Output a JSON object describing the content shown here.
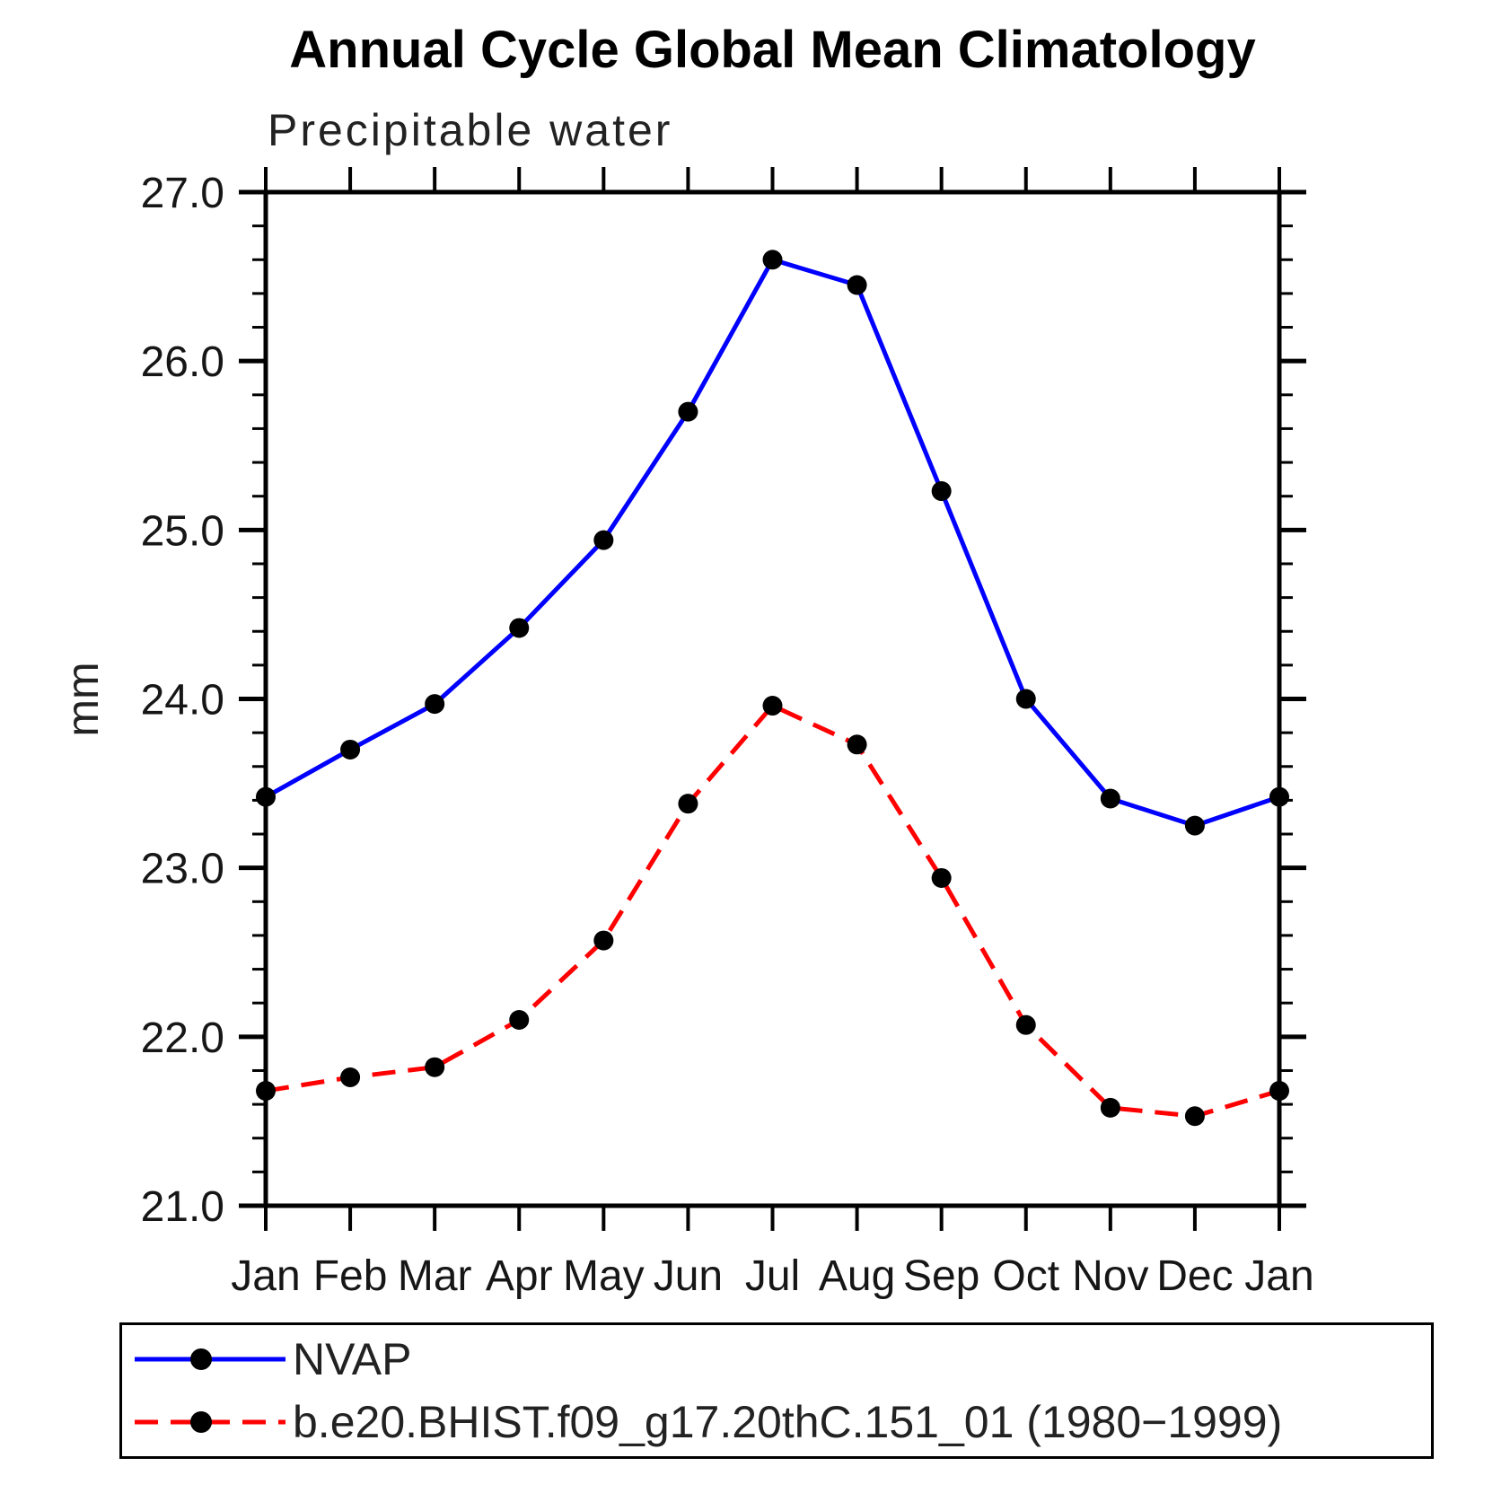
{
  "chart_data": {
    "type": "line",
    "title": "Annual Cycle Global Mean Climatology",
    "subtitle": "Precipitable water",
    "ylabel": "mm",
    "xlabel": "",
    "ylim": [
      21.0,
      27.0
    ],
    "ytick_step": 1.0,
    "yminor_step": 0.2,
    "grid": false,
    "legend_position": "bottom",
    "categories": [
      "Jan",
      "Feb",
      "Mar",
      "Apr",
      "May",
      "Jun",
      "Jul",
      "Aug",
      "Sep",
      "Oct",
      "Nov",
      "Dec",
      "Jan"
    ],
    "series": [
      {
        "name": "NVAP",
        "color": "#0000ff",
        "line_style": "solid",
        "line_width": 5,
        "marker": "circle",
        "marker_color": "#000000",
        "marker_radius": 11,
        "values": [
          23.42,
          23.7,
          23.97,
          24.42,
          24.94,
          25.7,
          26.6,
          26.45,
          25.23,
          24.0,
          23.41,
          23.25,
          23.42
        ]
      },
      {
        "name": "b.e20.BHIST.f09_g17.20thC.151_01 (1980−1999)",
        "color": "#ff0000",
        "line_style": "dashed",
        "dash": [
          26,
          14
        ],
        "line_width": 5,
        "marker": "circle",
        "marker_color": "#000000",
        "marker_radius": 11,
        "values": [
          21.68,
          21.76,
          21.82,
          22.1,
          22.57,
          23.38,
          23.96,
          23.73,
          22.94,
          22.07,
          21.58,
          21.53,
          21.68
        ]
      }
    ]
  },
  "legend": {
    "items": [
      {
        "label": "NVAP"
      },
      {
        "label": "b.e20.BHIST.f09_g17.20thC.151_01 (1980−1999)"
      }
    ]
  }
}
